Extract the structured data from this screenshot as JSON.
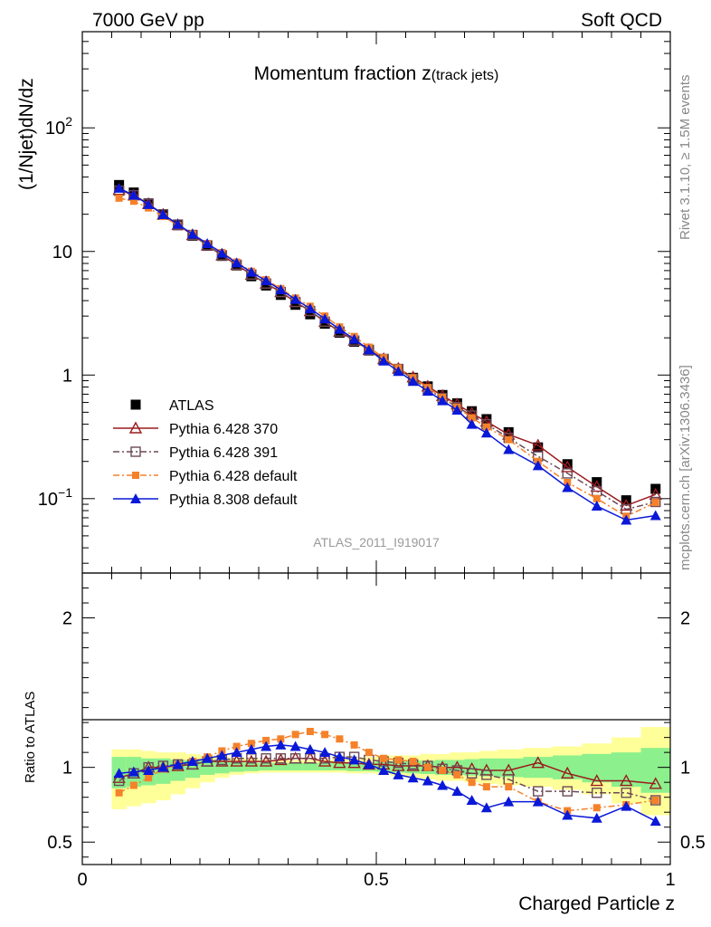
{
  "header": {
    "left": "7000 GeV pp",
    "right": "Soft QCD"
  },
  "side_labels": {
    "rivet": "Rivet 3.1.10, ≥ 1.5M events",
    "mcplots": "mcplots.cern.ch [arXiv:1306.3436]"
  },
  "watermark": "ATLAS_2011_I919017",
  "chart_data": [
    {
      "type": "scatter",
      "title_main": "Momentum fraction ",
      "title_z": "z",
      "title_sub": "(track jets)",
      "ylabel": "(1/Njet)dN/dz",
      "yscale": "log",
      "xlim": [
        0,
        1
      ],
      "ylim": [
        0.025,
        600
      ],
      "y_ticks": [
        {
          "value": 0.1,
          "label": "10",
          "sup": "−1"
        },
        {
          "value": 1,
          "label": "1",
          "sup": ""
        },
        {
          "value": 10,
          "label": "10",
          "sup": ""
        },
        {
          "value": 100,
          "label": "10",
          "sup": "2"
        }
      ],
      "x": [
        0.0625,
        0.0875,
        0.1125,
        0.1375,
        0.1625,
        0.1875,
        0.2125,
        0.2375,
        0.2625,
        0.2875,
        0.3125,
        0.3375,
        0.3625,
        0.3875,
        0.4125,
        0.4375,
        0.4625,
        0.4875,
        0.5125,
        0.5375,
        0.5625,
        0.5875,
        0.6125,
        0.6375,
        0.6625,
        0.6875,
        0.725,
        0.775,
        0.825,
        0.875,
        0.925,
        0.975
      ],
      "series": [
        {
          "name": "ATLAS",
          "key": "atlas",
          "color": "#000000",
          "marker": "square-filled",
          "line": "none",
          "values": [
            34.5,
            30.0,
            24.5,
            19.8,
            16.3,
            13.4,
            11.1,
            9.2,
            7.7,
            6.3,
            5.3,
            4.45,
            3.7,
            3.1,
            2.6,
            2.2,
            1.86,
            1.58,
            1.33,
            1.12,
            0.95,
            0.81,
            0.69,
            0.59,
            0.51,
            0.44,
            0.345,
            0.26,
            0.19,
            0.136,
            0.097,
            0.12
          ]
        },
        {
          "name": "Pythia 6.428 370",
          "key": "p370",
          "color": "#9b1b1f",
          "marker": "triangle-open",
          "line": "solid",
          "values": [
            31.5,
            28.5,
            24.3,
            19.9,
            16.4,
            13.6,
            11.2,
            9.3,
            7.8,
            6.5,
            5.5,
            4.7,
            3.9,
            3.3,
            2.7,
            2.25,
            1.9,
            1.6,
            1.35,
            1.13,
            0.96,
            0.81,
            0.68,
            0.58,
            0.49,
            0.42,
            0.33,
            0.27,
            0.18,
            0.125,
            0.088,
            0.108
          ]
        },
        {
          "name": "Pythia 6.428 391",
          "key": "p391",
          "color": "#6b4a57",
          "marker": "square-open",
          "line": "dashdot",
          "values": [
            31.0,
            28.5,
            24.3,
            20.0,
            16.5,
            13.6,
            11.2,
            9.3,
            7.8,
            6.5,
            5.5,
            4.7,
            3.9,
            3.3,
            2.7,
            2.25,
            1.9,
            1.6,
            1.35,
            1.12,
            0.93,
            0.77,
            0.65,
            0.55,
            0.47,
            0.4,
            0.31,
            0.22,
            0.16,
            0.115,
            0.082,
            0.094
          ]
        },
        {
          "name": "Pythia 6.428 default",
          "key": "p6def",
          "color": "#f5812a",
          "marker": "square-filled-small",
          "line": "dashdot",
          "values": [
            27.0,
            25.5,
            22.5,
            19.2,
            16.3,
            13.8,
            11.6,
            9.8,
            8.2,
            6.9,
            5.9,
            5.0,
            4.2,
            3.6,
            3.0,
            2.45,
            2.05,
            1.68,
            1.38,
            1.14,
            0.95,
            0.79,
            0.66,
            0.55,
            0.45,
            0.38,
            0.3,
            0.2,
            0.135,
            0.1,
            0.072,
            0.093
          ]
        },
        {
          "name": "Pythia 8.308 default",
          "key": "p8def",
          "color": "#0a18d8",
          "marker": "triangle-filled",
          "line": "solid",
          "values": [
            32.5,
            28.5,
            24.0,
            19.9,
            16.6,
            13.8,
            11.6,
            9.7,
            8.1,
            6.8,
            5.8,
            4.9,
            4.1,
            3.45,
            2.85,
            2.35,
            1.95,
            1.6,
            1.3,
            1.07,
            0.89,
            0.74,
            0.62,
            0.52,
            0.4,
            0.34,
            0.25,
            0.185,
            0.123,
            0.087,
            0.067,
            0.073
          ]
        }
      ],
      "legend": {
        "placement": "bottom-left"
      }
    },
    {
      "type": "scatter",
      "ylabel": "Ratio to ATLAS",
      "xlabel": "Charged Particle z",
      "xlim": [
        0,
        1
      ],
      "ylim": [
        0.35,
        2.3
      ],
      "x_ticks": [
        {
          "value": 0,
          "label": "0"
        },
        {
          "value": 0.5,
          "label": "0.5"
        },
        {
          "value": 1,
          "label": "1"
        }
      ],
      "y_ticks": [
        {
          "value": 0.5,
          "label": "0.5"
        },
        {
          "value": 1,
          "label": "1"
        },
        {
          "value": 2,
          "label": "2"
        }
      ],
      "bands": {
        "yellow_color": "#ffff99",
        "green_color": "#8cf08c",
        "yellow_lo": [
          0.72,
          0.74,
          0.76,
          0.78,
          0.82,
          0.86,
          0.9,
          0.93,
          0.95,
          0.96,
          0.965,
          0.965,
          0.965,
          0.965,
          0.965,
          0.965,
          0.96,
          0.96,
          0.95,
          0.94,
          0.93,
          0.92,
          0.91,
          0.91,
          0.9,
          0.89,
          0.88,
          0.87,
          0.85,
          0.82,
          0.76,
          0.68
        ],
        "yellow_hi": [
          1.12,
          1.12,
          1.11,
          1.1,
          1.1,
          1.09,
          1.08,
          1.07,
          1.06,
          1.06,
          1.05,
          1.05,
          1.05,
          1.05,
          1.05,
          1.06,
          1.06,
          1.07,
          1.08,
          1.08,
          1.08,
          1.09,
          1.09,
          1.1,
          1.1,
          1.11,
          1.12,
          1.13,
          1.14,
          1.16,
          1.2,
          1.27
        ],
        "green_lo": [
          0.86,
          0.87,
          0.88,
          0.89,
          0.91,
          0.93,
          0.95,
          0.96,
          0.97,
          0.975,
          0.98,
          0.98,
          0.98,
          0.98,
          0.98,
          0.98,
          0.975,
          0.975,
          0.97,
          0.965,
          0.96,
          0.955,
          0.95,
          0.95,
          0.945,
          0.94,
          0.935,
          0.93,
          0.92,
          0.9,
          0.87,
          0.83
        ],
        "green_hi": [
          1.07,
          1.07,
          1.06,
          1.06,
          1.05,
          1.05,
          1.045,
          1.04,
          1.035,
          1.03,
          1.03,
          1.03,
          1.03,
          1.03,
          1.03,
          1.03,
          1.03,
          1.035,
          1.04,
          1.04,
          1.045,
          1.045,
          1.05,
          1.05,
          1.055,
          1.06,
          1.06,
          1.07,
          1.08,
          1.09,
          1.1,
          1.13
        ]
      },
      "series": [
        {
          "key": "p370",
          "color": "#9b1b1f",
          "marker": "triangle-open",
          "line": "solid",
          "values": [
            0.93,
            0.96,
            1.0,
            1.0,
            1.01,
            1.02,
            1.04,
            1.04,
            1.04,
            1.04,
            1.04,
            1.05,
            1.06,
            1.06,
            1.04,
            1.03,
            1.03,
            1.02,
            1.02,
            1.01,
            1.01,
            1.01,
            1.0,
            1.0,
            0.99,
            0.98,
            0.98,
            1.03,
            0.96,
            0.91,
            0.91,
            0.89
          ]
        },
        {
          "key": "p391",
          "color": "#6b4a57",
          "marker": "square-open",
          "line": "dashdot",
          "values": [
            0.91,
            0.96,
            1.0,
            1.01,
            1.02,
            1.02,
            1.04,
            1.05,
            1.06,
            1.06,
            1.06,
            1.06,
            1.06,
            1.06,
            1.06,
            1.07,
            1.07,
            1.05,
            1.04,
            1.03,
            1.02,
            1.01,
            0.99,
            0.98,
            0.96,
            0.95,
            0.92,
            0.84,
            0.84,
            0.83,
            0.83,
            0.78
          ]
        },
        {
          "key": "p6def",
          "color": "#f5812a",
          "marker": "square-filled-small",
          "line": "dashdot",
          "values": [
            0.83,
            0.88,
            0.93,
            0.99,
            1.02,
            1.04,
            1.07,
            1.11,
            1.14,
            1.16,
            1.18,
            1.19,
            1.22,
            1.24,
            1.22,
            1.19,
            1.15,
            1.1,
            1.06,
            1.05,
            1.04,
            1.0,
            0.98,
            0.95,
            0.9,
            0.87,
            0.87,
            0.77,
            0.71,
            0.73,
            0.75,
            0.78
          ]
        },
        {
          "key": "p8def",
          "color": "#0a18d8",
          "marker": "triangle-filled",
          "line": "solid",
          "values": [
            0.96,
            0.97,
            0.98,
            1.0,
            1.02,
            1.04,
            1.06,
            1.08,
            1.1,
            1.12,
            1.14,
            1.15,
            1.14,
            1.12,
            1.1,
            1.07,
            1.05,
            1.02,
            0.98,
            0.95,
            0.93,
            0.91,
            0.88,
            0.84,
            0.78,
            0.73,
            0.77,
            0.77,
            0.68,
            0.66,
            0.74,
            0.64
          ]
        }
      ]
    }
  ]
}
